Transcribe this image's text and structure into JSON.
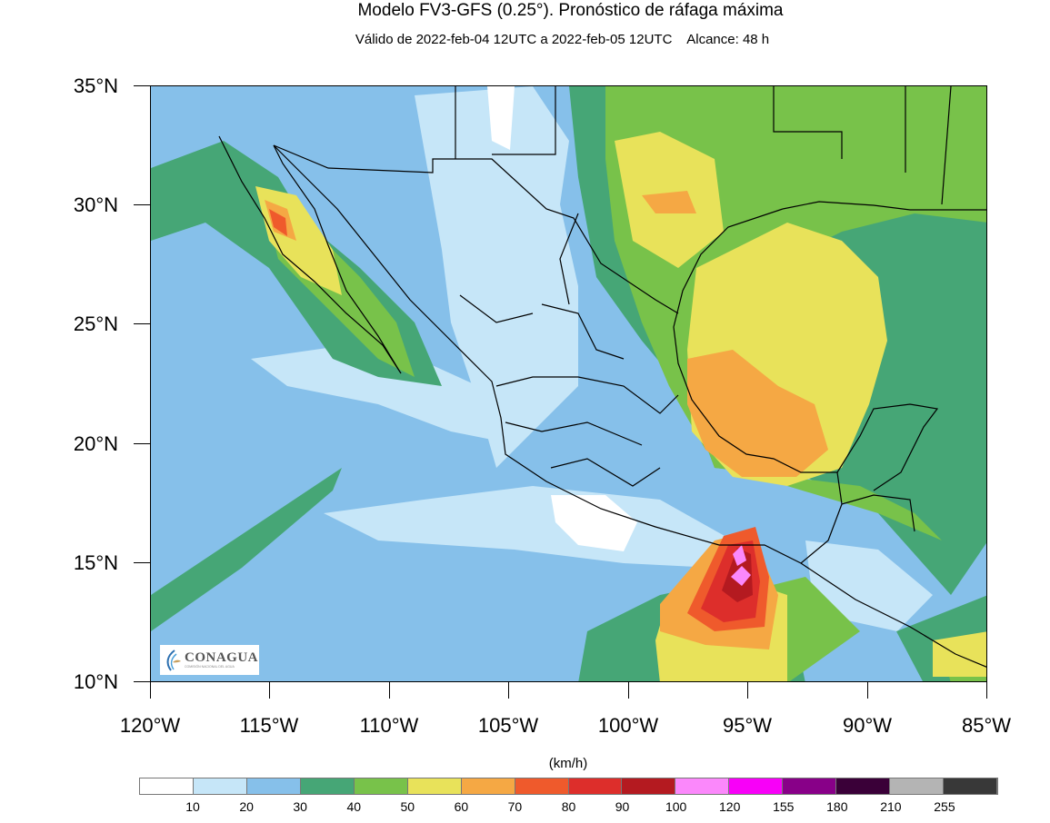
{
  "header": {
    "title": "Modelo FV3-GFS (0.25°). Pronóstico de ráfaga máxima",
    "subtitle": "Válido de 2022-feb-04 12UTC a 2022-feb-05 12UTC    Alcance: 48 h"
  },
  "map": {
    "lat_labels": [
      "35°N",
      "30°N",
      "25°N",
      "20°N",
      "15°N",
      "10°N"
    ],
    "lon_labels": [
      "120°W",
      "115°W",
      "110°W",
      "105°W",
      "100°W",
      "95°W",
      "90°W",
      "85°W"
    ],
    "lat_range": [
      10,
      35
    ],
    "lon_range": [
      -120,
      -85
    ],
    "variable": "ráfaga máxima",
    "max_region": "Golfo de Tehuantepec, 100-120 km/h"
  },
  "logo": {
    "name": "CONAGUA",
    "tagline": "COMISIÓN NACIONAL DEL AGUA"
  },
  "colorbar": {
    "unit": "(km/h)",
    "labels": [
      "10",
      "20",
      "30",
      "40",
      "50",
      "60",
      "70",
      "80",
      "90",
      "100",
      "120",
      "155",
      "180",
      "210",
      "255"
    ],
    "colors": [
      "#ffffff",
      "#c6e6f8",
      "#86c0ea",
      "#46a676",
      "#78c24a",
      "#e8e25a",
      "#f5a844",
      "#ef5a2c",
      "#dd2e2b",
      "#b41a20",
      "#fb88fb",
      "#f800f8",
      "#880088",
      "#3a0038",
      "#b4b4b4",
      "#383838"
    ]
  }
}
